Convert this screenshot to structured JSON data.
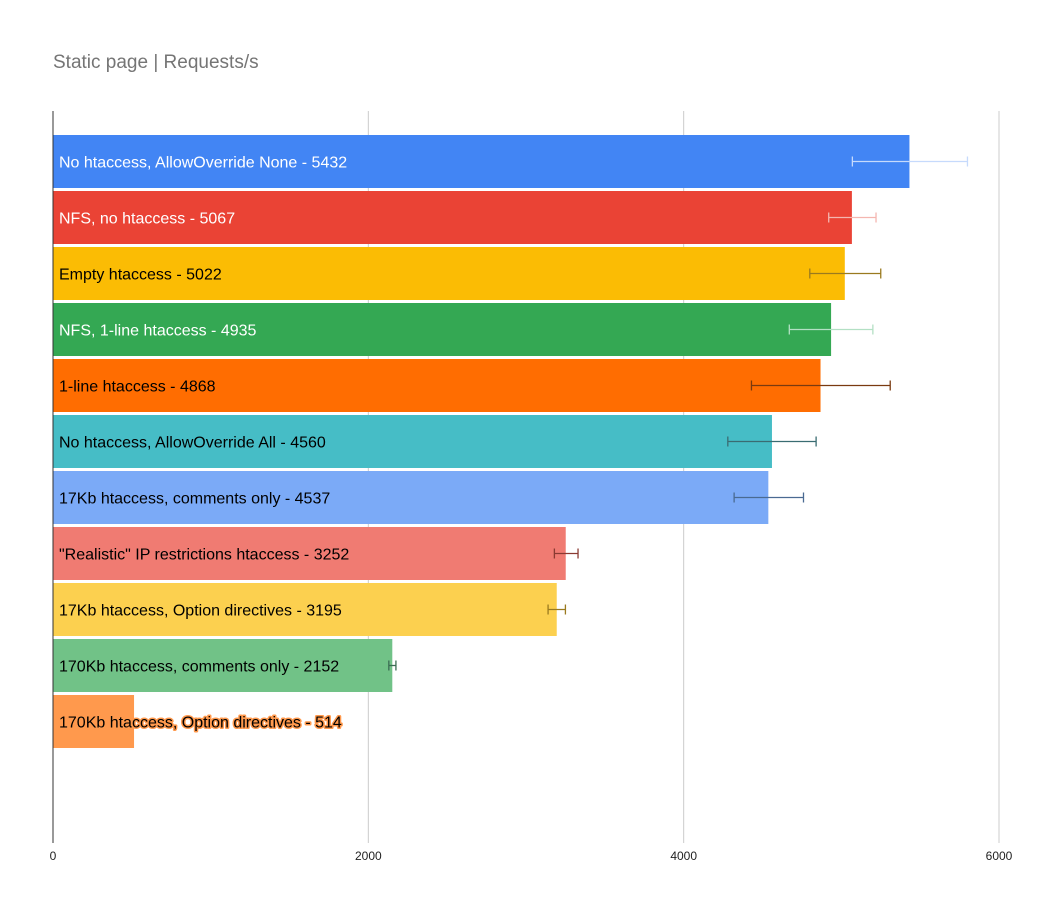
{
  "chart_data": {
    "type": "bar",
    "orientation": "horizontal",
    "title": "Static page | Requests/s",
    "xlabel": "",
    "ylabel": "",
    "xlim": [
      0,
      6000
    ],
    "x_ticks": [
      "0",
      "2000",
      "4000",
      "6000"
    ],
    "grid": true,
    "legend": "none",
    "bars": [
      {
        "label": "No htaccess, AllowOverride None - 5432",
        "value": 5432,
        "err_low": 5070,
        "err_high": 5800,
        "color": "#4285f4",
        "err_color": "#c6dafc",
        "text_color": "#ffffff"
      },
      {
        "label": "NFS, no htaccess - 5067",
        "value": 5067,
        "err_low": 4920,
        "err_high": 5220,
        "color": "#ea4335",
        "err_color": "#f4b6b0",
        "text_color": "#ffffff"
      },
      {
        "label": "Empty htaccess - 5022",
        "value": 5022,
        "err_low": 4800,
        "err_high": 5250,
        "color": "#fbbc04",
        "err_color": "#9a7a1f",
        "text_color": "#000000"
      },
      {
        "label": "NFS, 1-line htaccess - 4935",
        "value": 4935,
        "err_low": 4670,
        "err_high": 5200,
        "color": "#34a853",
        "err_color": "#b3e0c4",
        "text_color": "#ffffff"
      },
      {
        "label": "1-line htaccess - 4868",
        "value": 4868,
        "err_low": 4430,
        "err_high": 5310,
        "color": "#ff6d01",
        "err_color": "#7a3a10",
        "text_color": "#000000"
      },
      {
        "label": "No htaccess, AllowOverride All - 4560",
        "value": 4560,
        "err_low": 4280,
        "err_high": 4840,
        "color": "#46bdc6",
        "err_color": "#3a6c72",
        "text_color": "#000000"
      },
      {
        "label": "17Kb htaccess, comments only - 4537",
        "value": 4537,
        "err_low": 4320,
        "err_high": 4760,
        "color": "#7baaf7",
        "err_color": "#4a6a92",
        "text_color": "#000000"
      },
      {
        "label": "\"Realistic\" IP restrictions htaccess - 3252",
        "value": 3252,
        "err_low": 3180,
        "err_high": 3330,
        "color": "#f07b72",
        "err_color": "#8a3a32",
        "text_color": "#000000"
      },
      {
        "label": "17Kb htaccess, Option directives - 3195",
        "value": 3195,
        "err_low": 3140,
        "err_high": 3250,
        "color": "#fcd04f",
        "err_color": "#9a7a1f",
        "text_color": "#000000"
      },
      {
        "label": "170Kb htaccess, comments only - 2152",
        "value": 2152,
        "err_low": 2130,
        "err_high": 2175,
        "color": "#71c287",
        "err_color": "#3a6c52",
        "text_color": "#000000"
      },
      {
        "label": "170Kb htaccess, Option directives - 514",
        "value": 514,
        "err_low": 514,
        "err_high": 514,
        "color": "#ff994d",
        "err_color": "#7a3a10",
        "text_color": "#000000",
        "label_halo": "#ff994d"
      }
    ]
  }
}
